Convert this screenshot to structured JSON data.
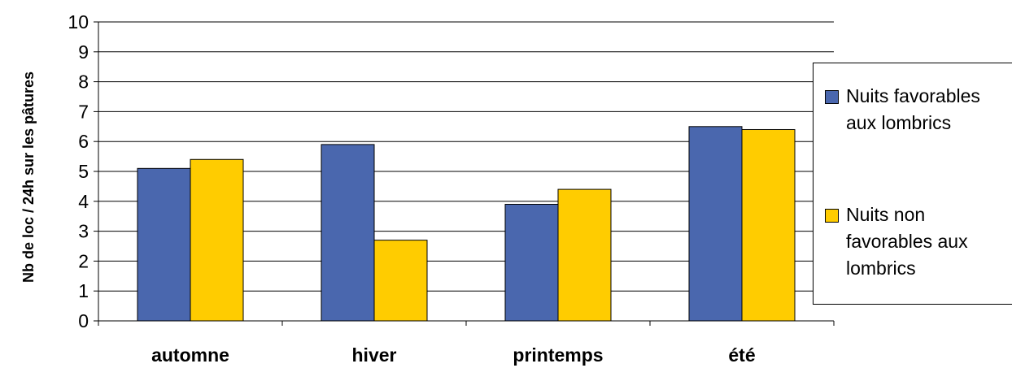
{
  "chart_data": {
    "type": "bar",
    "categories": [
      "automne",
      "hiver",
      "printemps",
      "été"
    ],
    "series": [
      {
        "name": "Nuits favorables aux lombrics",
        "values": [
          5.1,
          5.9,
          3.9,
          6.5
        ],
        "color": "#4A67AE"
      },
      {
        "name": "Nuits non favorables aux lombrics",
        "values": [
          5.4,
          2.7,
          4.4,
          6.4
        ],
        "color": "#FFCC00"
      }
    ],
    "title": "",
    "xlabel": "",
    "ylabel": "Nb de loc / 24h sur les pâtures",
    "ylim": [
      0,
      10
    ],
    "yticks": [
      "0",
      "1",
      "2",
      "3",
      "4",
      "5",
      "6",
      "7",
      "8",
      "9",
      "10"
    ],
    "grid": true,
    "legend_position": "right"
  }
}
